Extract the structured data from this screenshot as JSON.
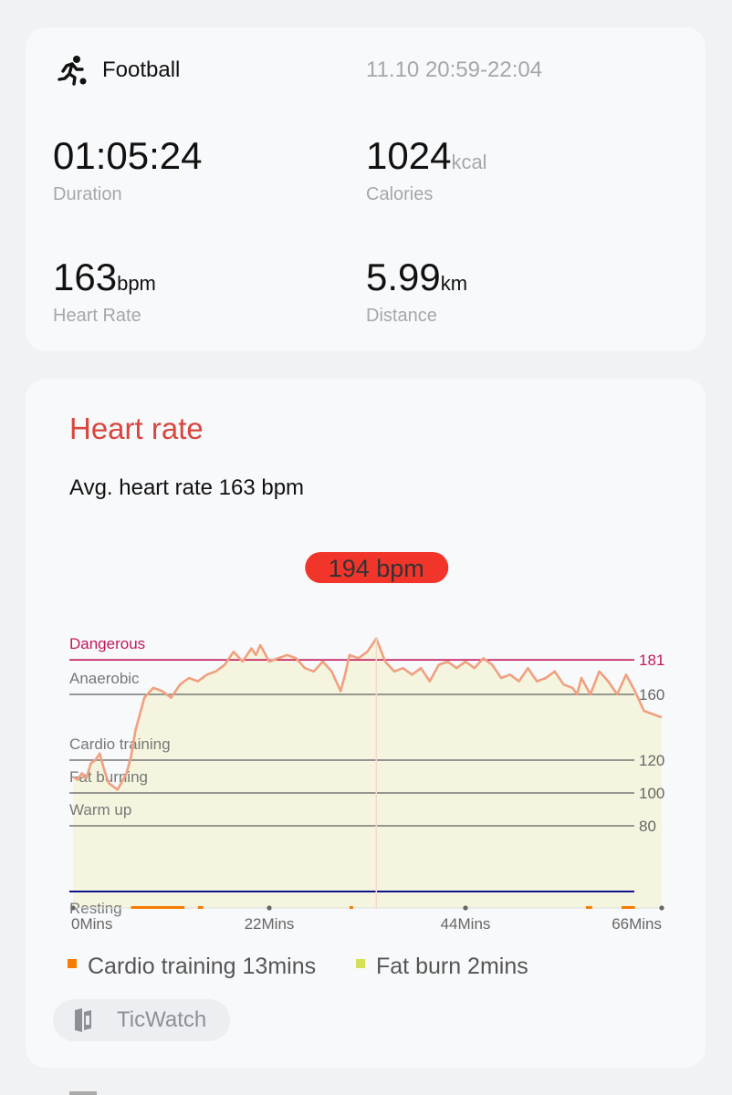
{
  "summary": {
    "sport": "Football",
    "sport_icon": "running-person-icon",
    "session_time": "11.10 20:59-22:04",
    "duration": {
      "value": "01:05:24",
      "label": "Duration"
    },
    "calories": {
      "value": "1024",
      "unit": "kcal",
      "label": "Calories"
    },
    "heart_rate": {
      "value": "163",
      "unit": "bpm",
      "label": "Heart Rate"
    },
    "distance": {
      "value": "5.99",
      "unit": "km",
      "label": "Distance"
    }
  },
  "hr_card": {
    "title": "Heart rate",
    "avg_text": "Avg. heart rate 163 bpm",
    "peak_label": "194 bpm",
    "colors": {
      "title": "#d9463e",
      "peak": "#f2352a",
      "line": "#f0a080",
      "cardio": "#f57c00",
      "fatburn": "#d4e157",
      "dangerous": "#c2185b",
      "resting": "#0d128e"
    },
    "legend": [
      {
        "label": "Cardio training 13mins",
        "color": "#f57c00"
      },
      {
        "label": "Fat burn 2mins",
        "color": "#d4e157"
      }
    ],
    "device": {
      "name": "TicWatch",
      "icon": "watch-device-icon"
    }
  },
  "chart_data": {
    "type": "line",
    "title": "",
    "xlabel": "",
    "ylabel": "",
    "x_ticks": [
      "0Mins",
      "22Mins",
      "44Mins",
      "66Mins"
    ],
    "xlim": [
      0,
      66
    ],
    "ylim": [
      30,
      194
    ],
    "zones": [
      {
        "label": "Dangerous",
        "threshold": 181,
        "tick": "181"
      },
      {
        "label": "Anaerobic",
        "threshold": 160,
        "tick": "160"
      },
      {
        "label": "Cardio training",
        "threshold": 120,
        "tick": "120"
      },
      {
        "label": "Fat burning",
        "threshold": 100,
        "tick": "100"
      },
      {
        "label": "Warm up",
        "threshold": 80,
        "tick": "80"
      },
      {
        "label": "Resting",
        "threshold": 40,
        "tick": ""
      }
    ],
    "peak": {
      "x": 34,
      "y": 194
    },
    "series": [
      {
        "x": [
          0,
          0.5,
          1,
          1.5,
          2,
          2.5,
          3,
          3.5,
          4,
          5,
          6,
          6.5,
          7,
          7.5,
          8,
          9,
          10,
          11,
          12,
          13,
          14,
          15,
          16,
          17,
          18,
          19,
          19.5,
          20,
          20.5,
          21,
          22,
          23,
          24,
          25,
          26,
          27,
          28,
          29,
          30,
          30.5,
          31,
          32,
          33,
          34,
          35,
          36,
          37,
          38,
          39,
          40,
          41,
          42,
          43,
          44,
          45,
          46,
          47,
          48,
          49,
          50,
          51,
          52,
          53,
          54,
          55,
          56,
          56.5,
          57,
          58,
          59,
          60,
          61,
          62,
          63,
          64,
          65,
          66
        ],
        "y": [
          110,
          108,
          112,
          109,
          118,
          120,
          124,
          114,
          106,
          102,
          112,
          122,
          138,
          148,
          158,
          164,
          162,
          158,
          166,
          170,
          168,
          172,
          174,
          178,
          186,
          180,
          184,
          188,
          184,
          190,
          180,
          182,
          184,
          182,
          176,
          174,
          180,
          174,
          162,
          172,
          184,
          182,
          186,
          194,
          180,
          174,
          176,
          172,
          176,
          168,
          178,
          180,
          176,
          180,
          176,
          182,
          178,
          170,
          172,
          168,
          176,
          168,
          170,
          174,
          166,
          164,
          160,
          170,
          160,
          174,
          168,
          160,
          172,
          162,
          150,
          148,
          146
        ]
      }
    ]
  }
}
